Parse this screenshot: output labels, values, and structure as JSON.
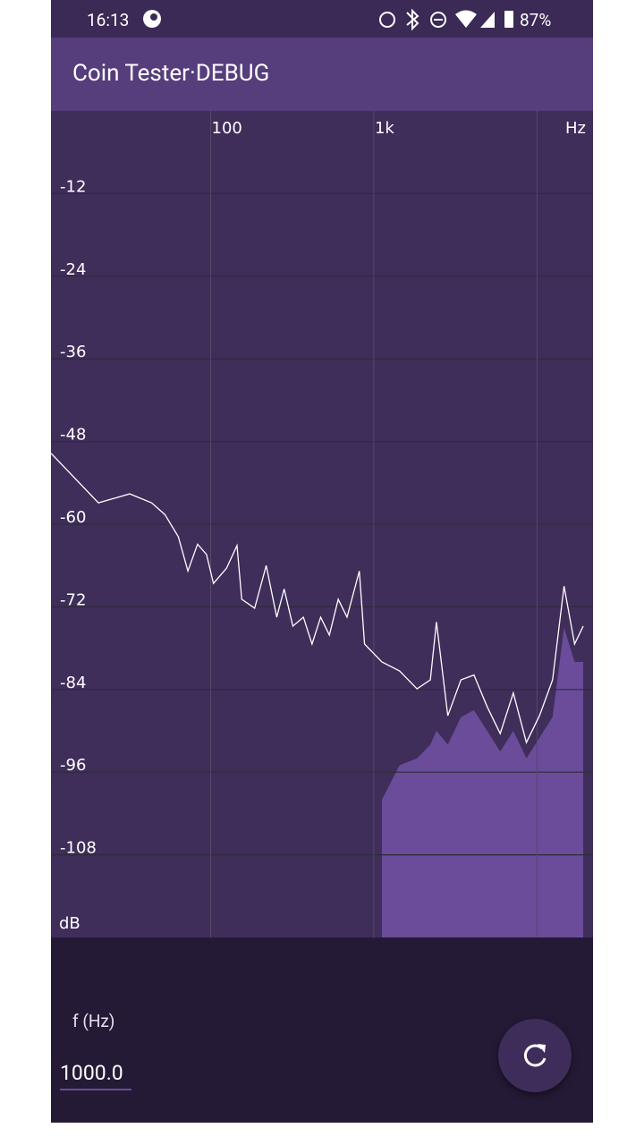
{
  "status_bar": {
    "time": "16:13",
    "battery": "87%"
  },
  "app_bar": {
    "title": "Coin Tester·DEBUG"
  },
  "chart_data": {
    "type": "line",
    "x_scale": "log",
    "grid": true,
    "x_label": "Hz",
    "y_label": "dB",
    "xlim": [
      10.5,
      22050
    ],
    "ylim": [
      -120,
      0
    ],
    "xticks": [
      100,
      {
        "value": 1000,
        "label": "1k"
      },
      {
        "value": 10000,
        "label": null
      }
    ],
    "yticks": [
      -12,
      -24,
      -36,
      -48,
      -60,
      -72,
      -84,
      -96,
      -108
    ],
    "x": [
      10.5,
      20.5,
      31.9,
      43.5,
      52.4,
      63.3,
      72.5,
      83.1,
      94.3,
      104,
      125,
      145,
      155,
      186,
      219,
      254,
      282,
      319,
      370,
      418,
      472,
      534,
      605,
      685,
      815,
      877,
      1120,
      1437,
      1840,
      2220,
      2420,
      2840,
      3420,
      4110,
      4950,
      5950,
      7160,
      8610,
      10360,
      12460,
      14650,
      17000,
      19200
    ],
    "series": [
      {
        "type": "line",
        "color": "#ffffff",
        "values": [
          -49.7,
          -56.9,
          -55.6,
          -56.9,
          -58.6,
          -61.8,
          -66.8,
          -62.9,
          -64.4,
          -68.6,
          -66.4,
          -63.1,
          -70.9,
          -72.2,
          -66,
          -73.5,
          -69.4,
          -74.8,
          -73.5,
          -77.4,
          -73.5,
          -76.1,
          -70.9,
          -73.5,
          -66.8,
          -77.4,
          -80,
          -81.3,
          -83.9,
          -82.6,
          -74.2,
          -87.8,
          -82.6,
          -81.9,
          -86.5,
          -90.4,
          -84.5,
          -91.7,
          -87.8,
          -82.6,
          -69,
          -77.4,
          -74.8
        ]
      },
      {
        "type": "area",
        "color": "#6a4c9a",
        "values": [
          null,
          null,
          null,
          null,
          null,
          null,
          null,
          null,
          null,
          null,
          null,
          null,
          null,
          null,
          null,
          null,
          null,
          null,
          null,
          null,
          null,
          null,
          null,
          null,
          null,
          null,
          -100,
          -95,
          -94,
          -92,
          -90,
          -92,
          -88,
          -87,
          -90,
          -93,
          -90,
          -94,
          -91,
          -88,
          -75,
          -80,
          -80
        ]
      }
    ]
  },
  "controls": {
    "frequency_label": "f (Hz)",
    "frequency_value": "1000.0"
  }
}
